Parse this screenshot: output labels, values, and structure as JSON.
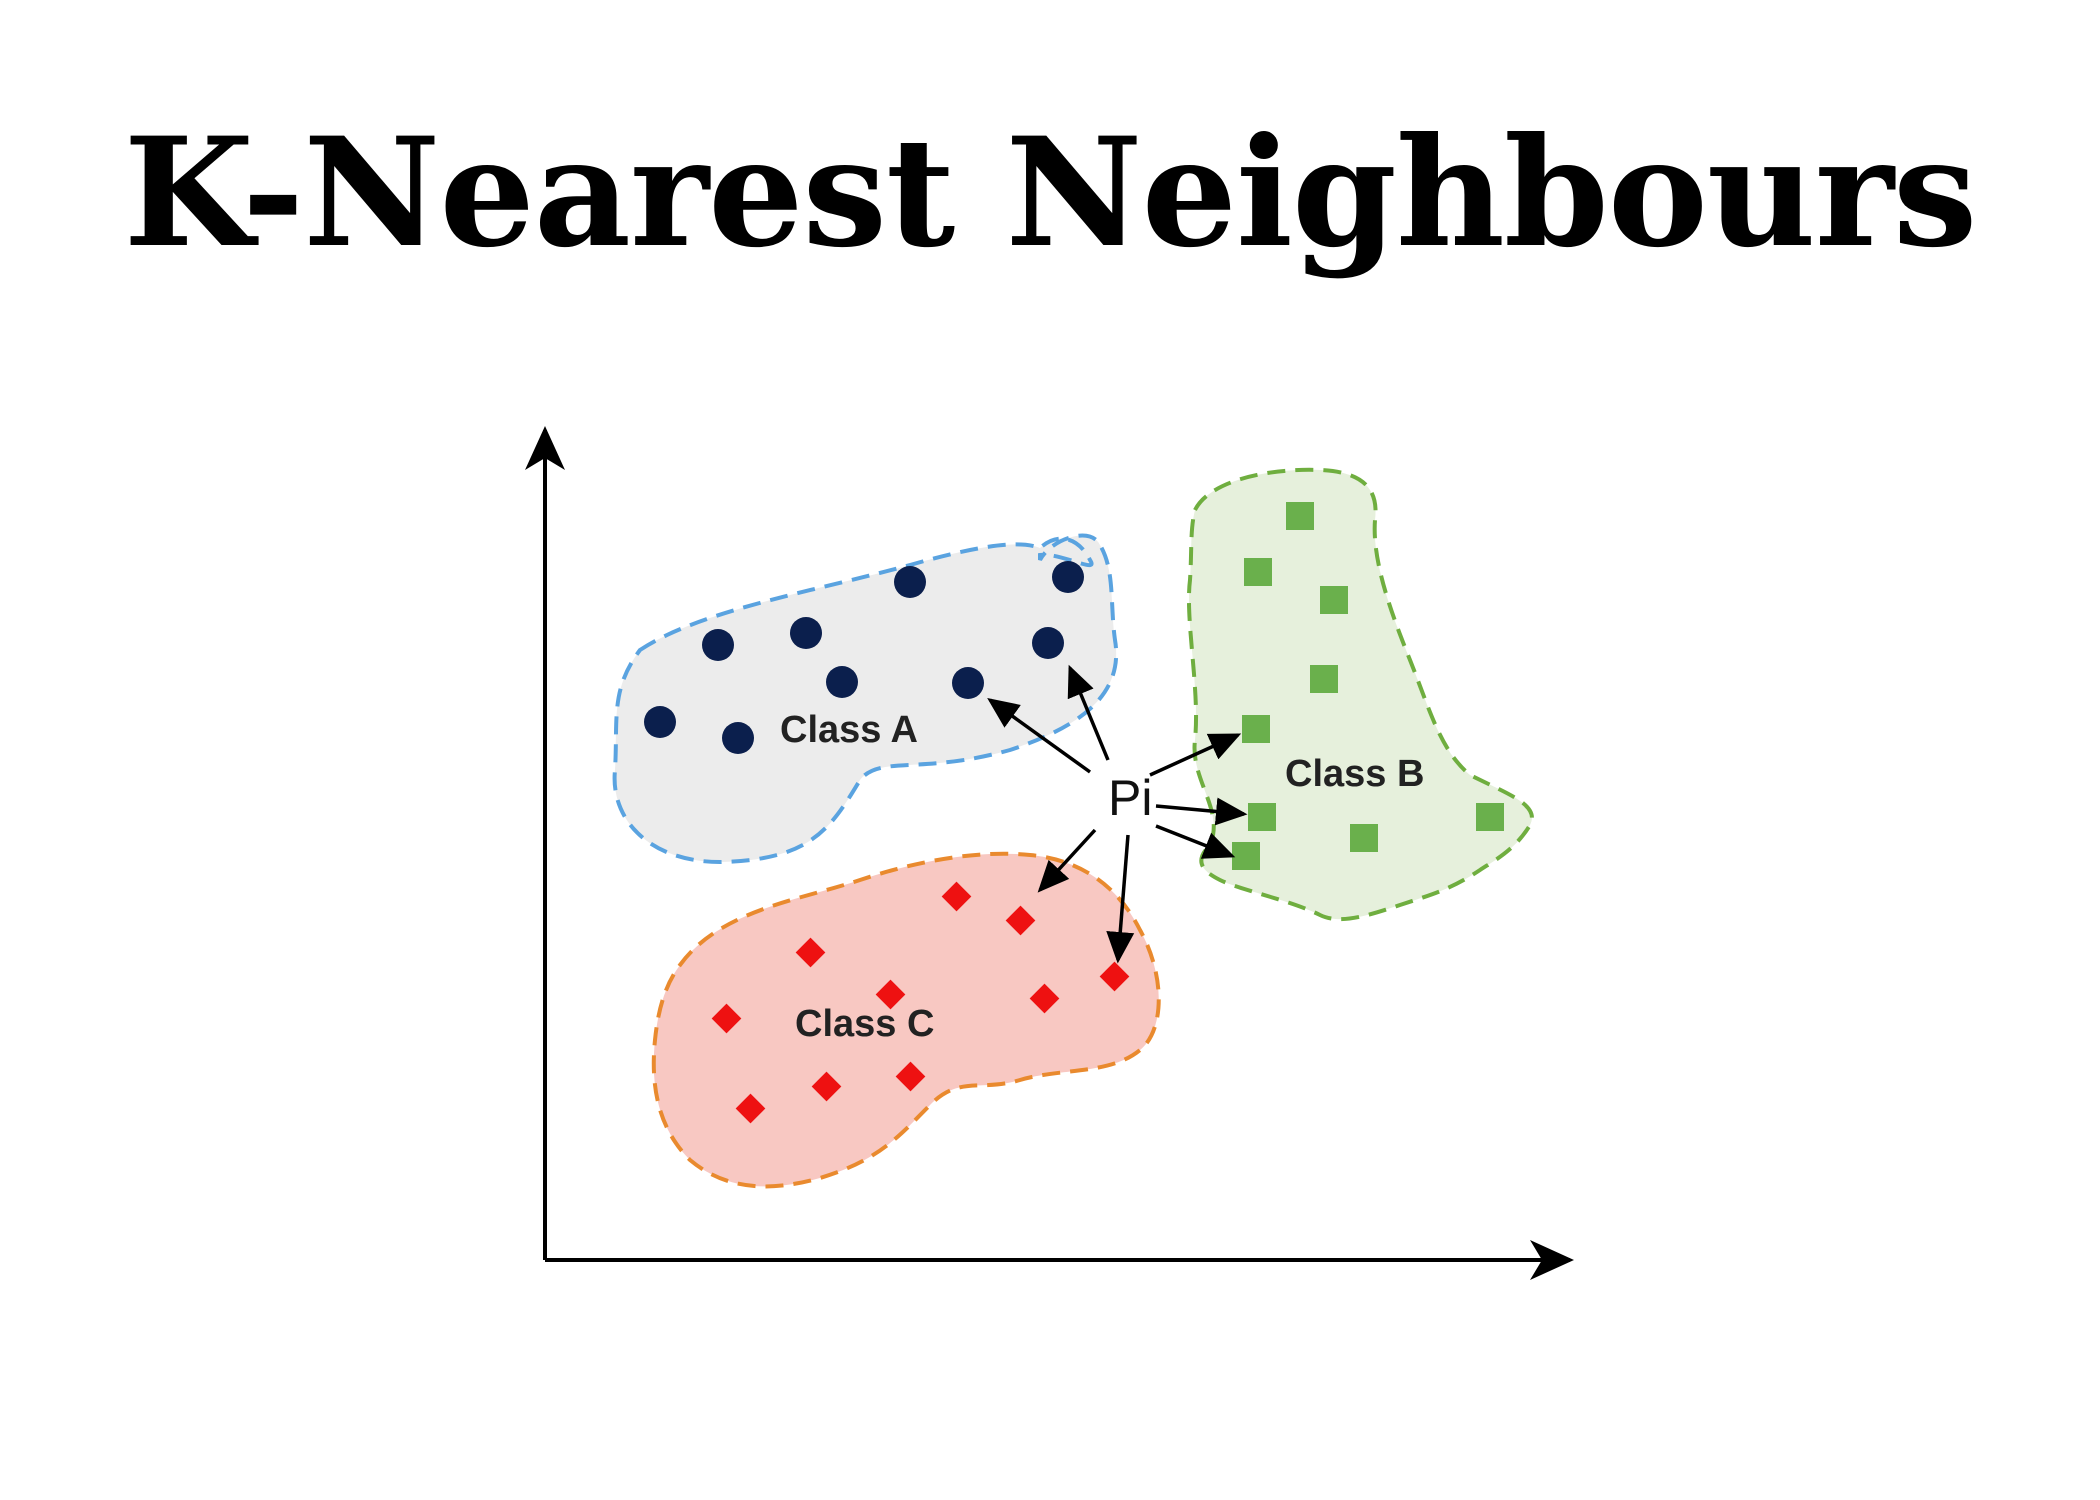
{
  "title": "K-Nearest Neighbours",
  "diagram": {
    "query_point_label": "Pi",
    "classes": [
      {
        "id": "a",
        "label": "Class A",
        "marker": "circle",
        "fill_color": "#ececec",
        "border_color": "#5aa3e0",
        "marker_color": "#0b1f4d"
      },
      {
        "id": "b",
        "label": "Class B",
        "marker": "square",
        "fill_color": "#e6f0dc",
        "border_color": "#6fae3f",
        "marker_color": "#6ab04c"
      },
      {
        "id": "c",
        "label": "Class C",
        "marker": "diamond",
        "fill_color": "#f8c8c2",
        "border_color": "#e98a2e",
        "marker_color": "#ee1111"
      }
    ],
    "axis_color": "#000000",
    "arrow_color": "#000000"
  }
}
